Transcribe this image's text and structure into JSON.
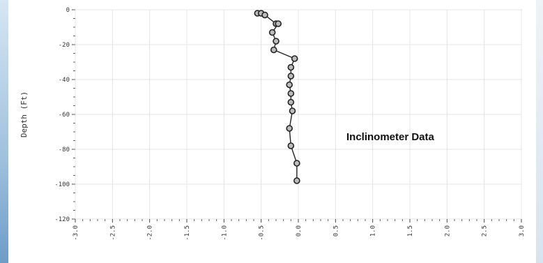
{
  "chart_data": {
    "type": "line",
    "title": "",
    "xlabel": "",
    "ylabel": "Depth (Ft)",
    "annotation": "Inclinometer Data",
    "xlim": [
      -3.0,
      3.0
    ],
    "ylim": [
      -120,
      0
    ],
    "x_ticks": [
      "-3.0",
      "-2.5",
      "-2.0",
      "-1.5",
      "-1.0",
      "-0.5",
      "0.0",
      "0.5",
      "1.0",
      "1.5",
      "2.0",
      "2.5",
      "3.0"
    ],
    "y_ticks": [
      "0",
      "-20",
      "-40",
      "-60",
      "-80",
      "-100",
      "-120"
    ],
    "grid": true,
    "series": [
      {
        "x": [
          -0.55,
          -0.5,
          -0.45,
          -0.3,
          -0.27,
          -0.35,
          -0.3,
          -0.33,
          -0.05,
          -0.1,
          -0.1,
          -0.12,
          -0.1,
          -0.1,
          -0.08,
          -0.12,
          -0.1,
          -0.02,
          -0.02
        ],
        "y": [
          -2,
          -2,
          -3,
          -8,
          -8,
          -13,
          -18,
          -23,
          -28,
          -33,
          -38,
          -43,
          -48,
          -53,
          -58,
          -68,
          -78,
          -88,
          -98
        ]
      }
    ],
    "line_color": "#222222",
    "marker_fill": "#bbbbbb"
  }
}
